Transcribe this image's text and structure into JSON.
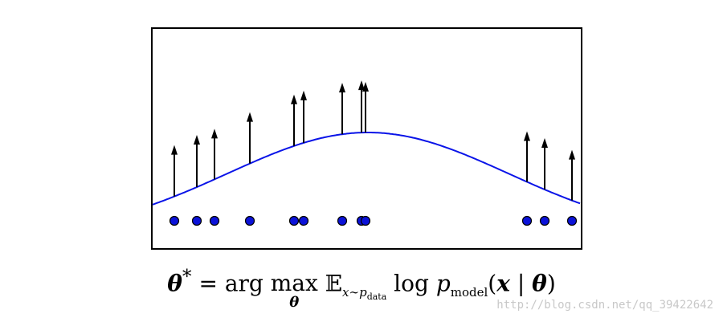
{
  "density": {
    "mean": 458,
    "sigma": 175
  },
  "data_points": [
    {
      "x": 217,
      "gradient": 64
    },
    {
      "x": 245,
      "gradient": 65
    },
    {
      "x": 267,
      "gradient": 63
    },
    {
      "x": 311,
      "gradient": 64
    },
    {
      "x": 366,
      "gradient": 64
    },
    {
      "x": 378,
      "gradient": 65
    },
    {
      "x": 426,
      "gradient": 64
    },
    {
      "x": 450,
      "gradient": 65
    },
    {
      "x": 455,
      "gradient": 63
    },
    {
      "x": 656,
      "gradient": 63
    },
    {
      "x": 678,
      "gradient": 64
    },
    {
      "x": 712,
      "gradient": 63
    }
  ],
  "colors": {
    "curve": "#0a14e8",
    "point": "#0b12d8",
    "arrow": "#000000"
  },
  "equation": {
    "theta": "θ",
    "star": "*",
    "equals": " = ",
    "arg": "arg",
    "max": "max",
    "max_sub": "θ",
    "expect": "𝔼",
    "expect_sub": "x∼p",
    "expect_subsub": "data",
    "log": " log ",
    "p": "p",
    "p_sub": "model",
    "paren_open": "(",
    "x": "x",
    "given": " | ",
    "theta2": "θ",
    "paren_close": ")"
  },
  "watermark": "http://blog.csdn.net/qq_39422642"
}
